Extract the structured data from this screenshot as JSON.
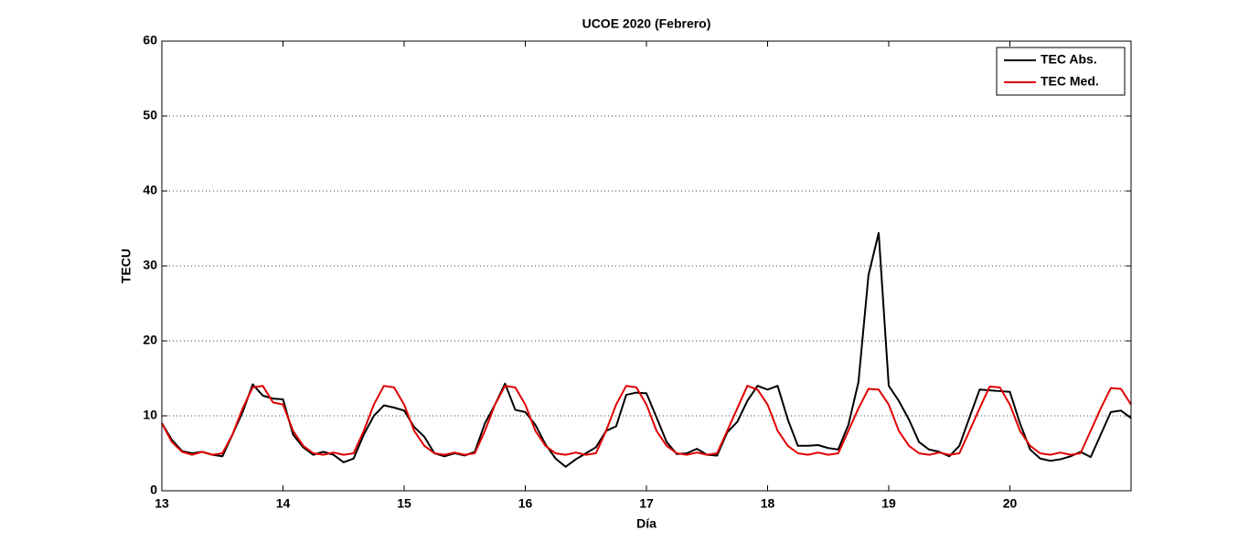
{
  "chart_data": {
    "type": "line",
    "title": "UCOE 2020 (Febrero)",
    "x_label": "Día",
    "y_label": "TECU",
    "xlim": [
      13,
      21
    ],
    "xticks": [
      13,
      14,
      15,
      16,
      17,
      18,
      19,
      20
    ],
    "ylim": [
      0,
      60
    ],
    "yticks": [
      0,
      10,
      20,
      30,
      40,
      50,
      60
    ],
    "grid": true,
    "legend": "top-right",
    "x": [
      13,
      13.083,
      13.167,
      13.25,
      13.333,
      13.417,
      13.5,
      13.583,
      13.667,
      13.75,
      13.833,
      13.917,
      14,
      14.083,
      14.167,
      14.25,
      14.333,
      14.417,
      14.5,
      14.583,
      14.667,
      14.75,
      14.833,
      14.917,
      15,
      15.083,
      15.167,
      15.25,
      15.333,
      15.417,
      15.5,
      15.583,
      15.667,
      15.75,
      15.833,
      15.917,
      16,
      16.083,
      16.167,
      16.25,
      16.333,
      16.417,
      16.5,
      16.583,
      16.667,
      16.75,
      16.833,
      16.917,
      17,
      17.083,
      17.167,
      17.25,
      17.333,
      17.417,
      17.5,
      17.583,
      17.667,
      17.75,
      17.833,
      17.917,
      18,
      18.083,
      18.167,
      18.25,
      18.333,
      18.417,
      18.5,
      18.583,
      18.667,
      18.75,
      18.833,
      18.917,
      19,
      19.083,
      19.167,
      19.25,
      19.333,
      19.417,
      19.5,
      19.583,
      19.667,
      19.75,
      19.833,
      19.917,
      20,
      20.083,
      20.167,
      20.25,
      20.333,
      20.417,
      20.5,
      20.583,
      20.667,
      20.75,
      20.833,
      20.917,
      21
    ],
    "series": [
      {
        "name": "TEC Abs.",
        "color": "#000000",
        "values": [
          9.0,
          6.8,
          5.3,
          5.0,
          5.2,
          4.8,
          4.6,
          7.5,
          10.5,
          14.2,
          12.7,
          12.3,
          12.2,
          7.5,
          5.8,
          4.8,
          5.2,
          4.8,
          3.8,
          4.3,
          7.5,
          10.0,
          11.4,
          11.1,
          10.7,
          8.5,
          7.2,
          5.0,
          4.6,
          5.0,
          4.7,
          5.2,
          9.0,
          11.5,
          14.3,
          10.8,
          10.5,
          8.8,
          6.2,
          4.3,
          3.2,
          4.2,
          5.0,
          5.8,
          8.0,
          8.6,
          12.8,
          13.1,
          13.0,
          9.8,
          6.5,
          4.9,
          5.0,
          5.6,
          4.8,
          4.7,
          7.8,
          9.2,
          12.0,
          14.0,
          13.5,
          14.0,
          9.5,
          6.0,
          6.0,
          6.1,
          5.7,
          5.5,
          8.8,
          14.5,
          28.8,
          34.4,
          14.0,
          12.0,
          9.5,
          6.5,
          5.5,
          5.2,
          4.6,
          6.0,
          9.8,
          13.5,
          13.4,
          13.3,
          13.2,
          9.0,
          5.5,
          4.3,
          4.0,
          4.2,
          4.6,
          5.2,
          4.5,
          7.5,
          10.5,
          10.7,
          9.7
        ]
      },
      {
        "name": "TEC Med.",
        "color": "#e00000",
        "values": [
          9.0,
          6.5,
          5.2,
          4.8,
          5.2,
          4.8,
          5.0,
          7.5,
          11.0,
          13.8,
          14.0,
          11.8,
          11.5,
          8.0,
          6.0,
          5.0,
          4.8,
          5.1,
          4.8,
          5.0,
          8.0,
          11.5,
          14.0,
          13.8,
          11.5,
          8.0,
          6.0,
          5.0,
          4.8,
          5.1,
          4.8,
          5.0,
          8.0,
          11.5,
          14.0,
          13.8,
          11.5,
          8.0,
          6.0,
          5.0,
          4.8,
          5.1,
          4.8,
          5.0,
          8.0,
          11.5,
          14.0,
          13.8,
          11.5,
          8.0,
          6.0,
          5.0,
          4.8,
          5.1,
          4.8,
          5.0,
          8.0,
          11.0,
          14.0,
          13.5,
          11.5,
          8.0,
          6.0,
          5.0,
          4.8,
          5.1,
          4.8,
          5.0,
          8.0,
          11.0,
          13.6,
          13.5,
          11.5,
          8.0,
          6.0,
          5.0,
          4.8,
          5.1,
          4.8,
          5.0,
          8.0,
          11.0,
          13.9,
          13.8,
          11.5,
          8.0,
          6.0,
          5.0,
          4.8,
          5.1,
          4.8,
          5.0,
          8.0,
          11.0,
          13.7,
          13.6,
          11.5
        ]
      }
    ]
  }
}
